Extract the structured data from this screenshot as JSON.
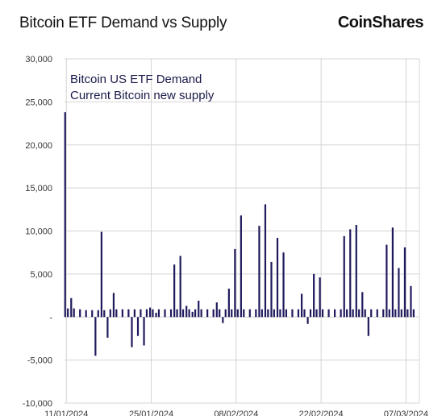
{
  "chart_data": {
    "type": "bar",
    "title": "Bitcoin ETF Demand vs Supply",
    "brand": "CoinShares",
    "xlabel": "",
    "ylabel": "",
    "ylim": [
      -10000,
      30000
    ],
    "yticks": [
      "-10,000",
      "-5,000",
      "-",
      "5,000",
      "10,000",
      "15,000",
      "20,000",
      "25,000",
      "30,000"
    ],
    "ytick_values": [
      -10000,
      -5000,
      0,
      5000,
      10000,
      15000,
      20000,
      25000,
      30000
    ],
    "xticks": [
      "11/01/2024",
      "25/01/2024",
      "08/02/2024",
      "22/02/2024",
      "07/03/2024"
    ],
    "xtick_day_index": [
      0,
      14,
      28,
      42,
      56
    ],
    "grid": true,
    "legend": [
      "Bitcoin US ETF Demand",
      "Current Bitcoin new supply"
    ],
    "legend_position": "top-left",
    "series": [
      {
        "name": "Bitcoin US ETF Demand",
        "color": "#1f1a5c",
        "x": [
          0,
          1,
          5,
          6,
          7,
          8,
          11,
          12,
          13,
          14,
          15,
          18,
          19,
          20,
          21,
          22,
          25,
          26,
          27,
          28,
          29,
          32,
          33,
          34,
          35,
          36,
          39,
          40,
          41,
          42,
          43,
          46,
          47,
          48,
          49,
          50,
          53,
          54,
          55,
          56,
          57
        ],
        "values": [
          23800,
          2200,
          -4500,
          9900,
          -2400,
          2800,
          -3500,
          -2200,
          -3300,
          1100,
          500,
          6100,
          7100,
          1300,
          600,
          1900,
          1700,
          -700,
          3300,
          7900,
          11800,
          10600,
          13100,
          6400,
          9200,
          7500,
          2700,
          -800,
          5000,
          4600,
          0,
          9400,
          10200,
          10700,
          2900,
          -2200,
          8400,
          10400,
          5700,
          8100,
          3600
        ]
      },
      {
        "name": "Current Bitcoin new supply",
        "color": "#1f1a5c",
        "x": [
          0,
          1,
          2,
          3,
          4,
          5,
          6,
          7,
          8,
          9,
          10,
          11,
          12,
          13,
          14,
          15,
          16,
          17,
          18,
          19,
          20,
          21,
          22,
          23,
          24,
          25,
          26,
          27,
          28,
          29,
          30,
          31,
          32,
          33,
          34,
          35,
          36,
          37,
          38,
          39,
          40,
          41,
          42,
          43,
          44,
          45,
          46,
          47,
          48,
          49,
          50,
          51,
          52,
          53,
          54,
          55,
          56,
          57
        ],
        "values": [
          1000,
          1000,
          900,
          800,
          800,
          800,
          800,
          900,
          900,
          900,
          900,
          900,
          900,
          900,
          900,
          900,
          900,
          900,
          900,
          900,
          900,
          900,
          900,
          900,
          900,
          900,
          900,
          900,
          900,
          900,
          900,
          900,
          900,
          900,
          900,
          900,
          900,
          900,
          900,
          900,
          900,
          900,
          900,
          900,
          900,
          900,
          900,
          900,
          900,
          900,
          900,
          900,
          900,
          900,
          900,
          900,
          900,
          900
        ]
      }
    ]
  }
}
